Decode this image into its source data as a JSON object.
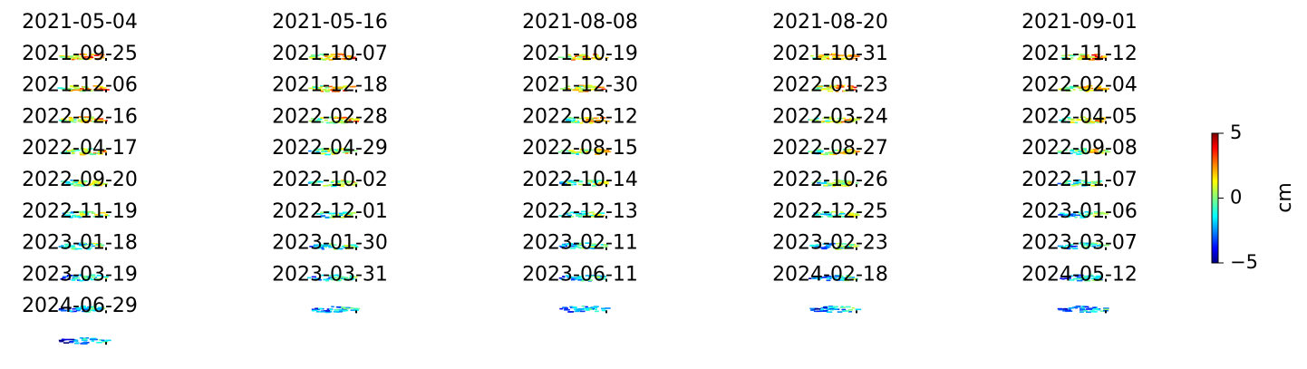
{
  "panels": [
    {
      "date": "2021-05-04"
    },
    {
      "date": "2021-05-16"
    },
    {
      "date": "2021-08-08"
    },
    {
      "date": "2021-08-20"
    },
    {
      "date": "2021-09-01"
    },
    {
      "date": "2021-09-25"
    },
    {
      "date": "2021-10-07"
    },
    {
      "date": "2021-10-19"
    },
    {
      "date": "2021-10-31"
    },
    {
      "date": "2021-11-12"
    },
    {
      "date": "2021-12-06"
    },
    {
      "date": "2021-12-18"
    },
    {
      "date": "2021-12-30"
    },
    {
      "date": "2022-01-23"
    },
    {
      "date": "2022-02-04"
    },
    {
      "date": "2022-02-16"
    },
    {
      "date": "2022-02-28"
    },
    {
      "date": "2022-03-12"
    },
    {
      "date": "2022-03-24"
    },
    {
      "date": "2022-04-05"
    },
    {
      "date": "2022-04-17"
    },
    {
      "date": "2022-04-29"
    },
    {
      "date": "2022-08-15"
    },
    {
      "date": "2022-08-27"
    },
    {
      "date": "2022-09-08"
    },
    {
      "date": "2022-09-20"
    },
    {
      "date": "2022-10-02"
    },
    {
      "date": "2022-10-14"
    },
    {
      "date": "2022-10-26"
    },
    {
      "date": "2022-11-07"
    },
    {
      "date": "2022-11-19"
    },
    {
      "date": "2022-12-01"
    },
    {
      "date": "2022-12-13"
    },
    {
      "date": "2022-12-25"
    },
    {
      "date": "2023-01-06"
    },
    {
      "date": "2023-01-18"
    },
    {
      "date": "2023-01-30"
    },
    {
      "date": "2023-02-11"
    },
    {
      "date": "2023-02-23"
    },
    {
      "date": "2023-03-07"
    },
    {
      "date": "2023-03-19"
    },
    {
      "date": "2023-03-31"
    },
    {
      "date": "2023-06-11"
    },
    {
      "date": "2024-02-18"
    },
    {
      "date": "2024-05-12"
    },
    {
      "date": "2024-06-29"
    }
  ],
  "colorbar": {
    "label": "cm",
    "lim": [
      -5,
      5
    ],
    "ticks": [
      {
        "value": -5,
        "label": "−5"
      },
      0,
      5
    ]
  }
}
